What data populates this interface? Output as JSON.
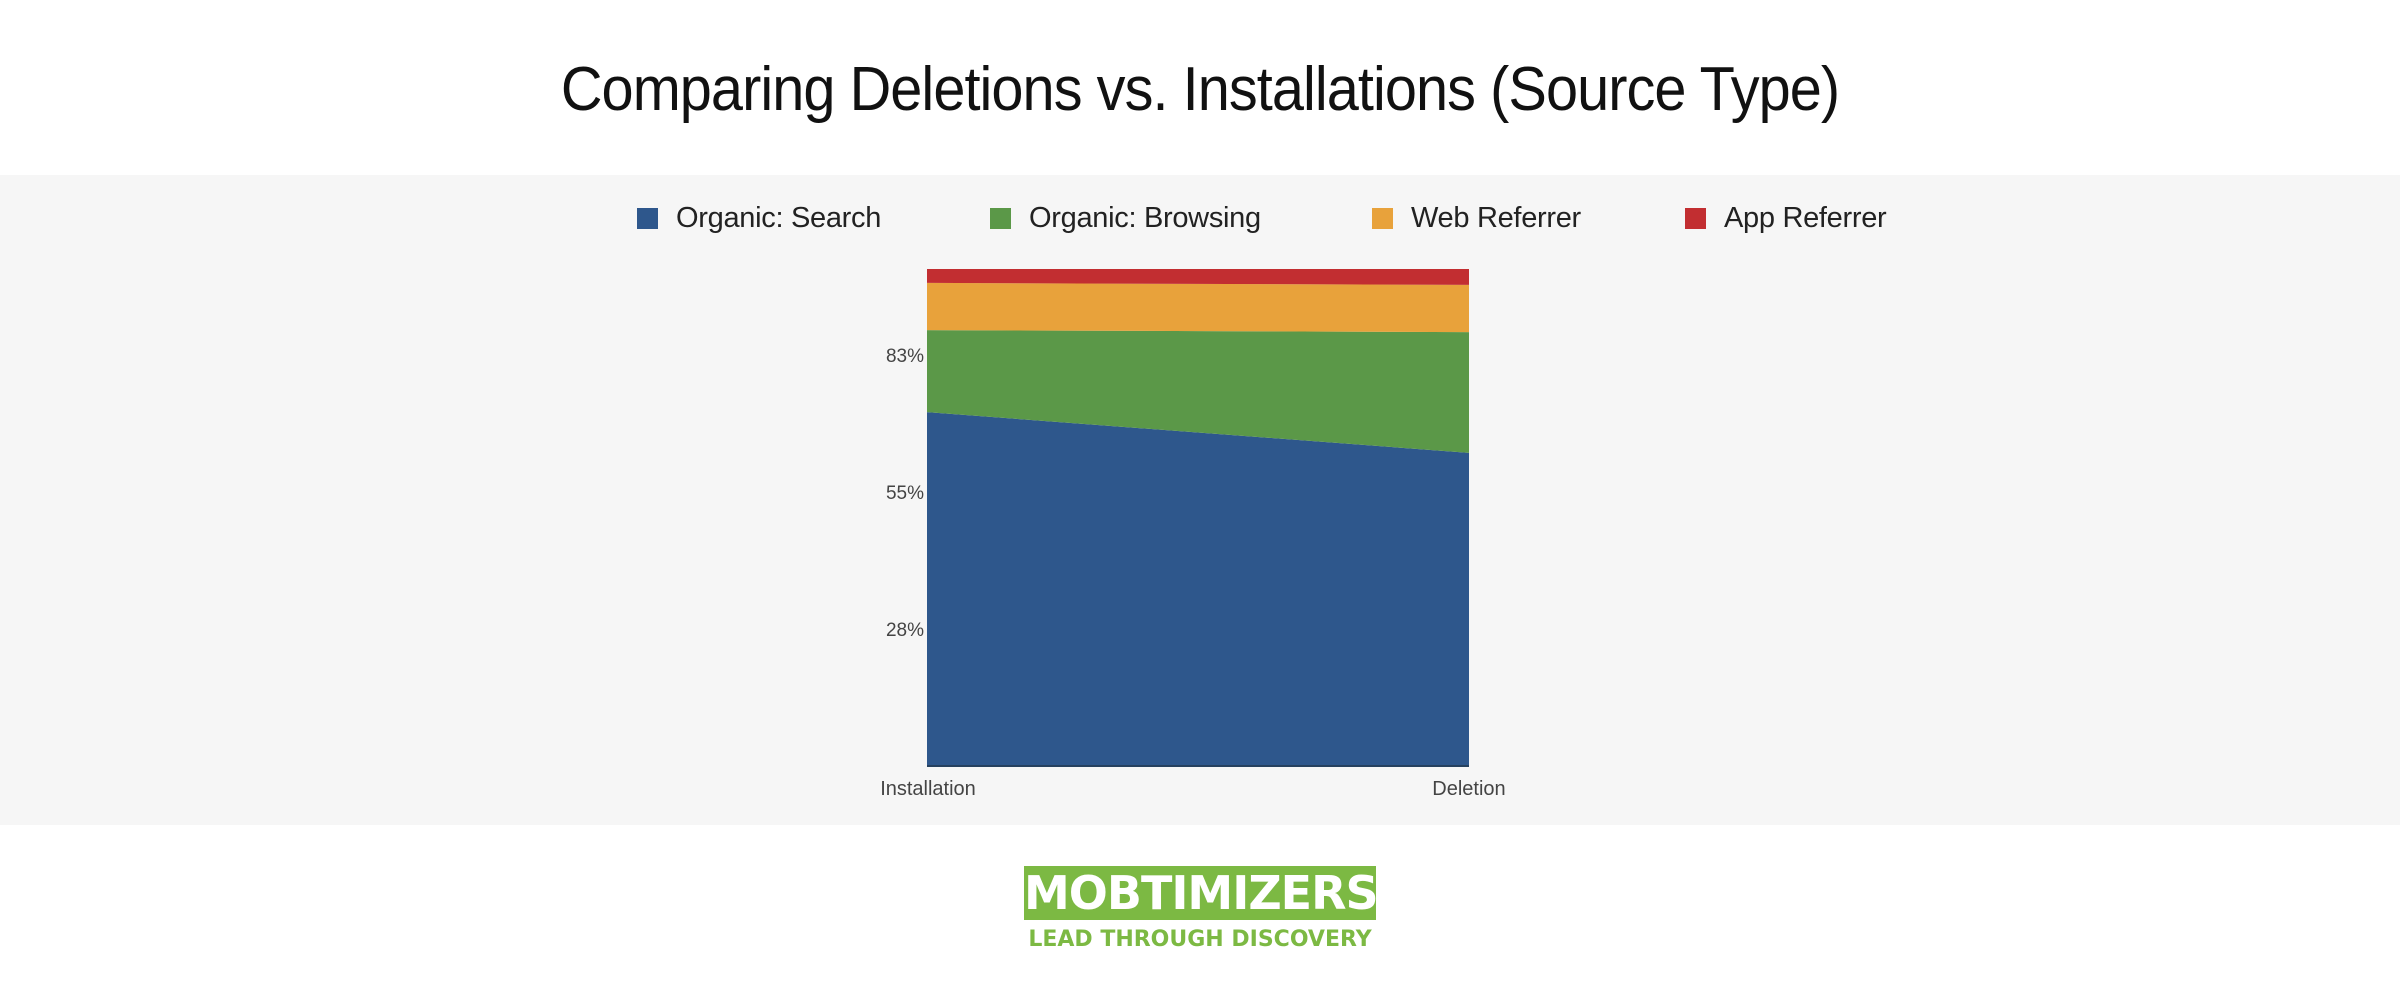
{
  "title": "Comparing Deletions vs. Installations (Source Type)",
  "legend": [
    {
      "label": "Organic: Search",
      "color": "#2e578c"
    },
    {
      "label": "Organic: Browsing",
      "color": "#5b9848"
    },
    {
      "label": "Web Referrer",
      "color": "#e8a23b"
    },
    {
      "label": "App Referrer",
      "color": "#c22e31"
    }
  ],
  "y_ticks": [
    "83%",
    "55%",
    "28%"
  ],
  "x_ticks": [
    "Installation",
    "Deletion"
  ],
  "logo": {
    "name": "MOBTIMIZERS",
    "tagline": "LEAD THROUGH DISCOVERY",
    "color": "#7cb943"
  },
  "chart_data": {
    "type": "area",
    "stacked": true,
    "normalized": true,
    "title": "Comparing Deletions vs. Installations (Source Type)",
    "xlabel": "",
    "ylabel": "",
    "categories": [
      "Installation",
      "Deletion"
    ],
    "series": [
      {
        "name": "Organic: Search",
        "color": "#2e578c",
        "values": [
          71.2,
          63.0
        ]
      },
      {
        "name": "Organic: Browsing",
        "color": "#5b9848",
        "values": [
          16.5,
          24.3
        ]
      },
      {
        "name": "Web Referrer",
        "color": "#e8a23b",
        "values": [
          9.5,
          9.5
        ]
      },
      {
        "name": "App Referrer",
        "color": "#c22e31",
        "values": [
          2.8,
          3.2
        ]
      }
    ],
    "y_tick_labels": [
      "28%",
      "55%",
      "83%"
    ],
    "ylim": [
      0,
      100
    ],
    "grid": false,
    "legend_position": "top"
  }
}
